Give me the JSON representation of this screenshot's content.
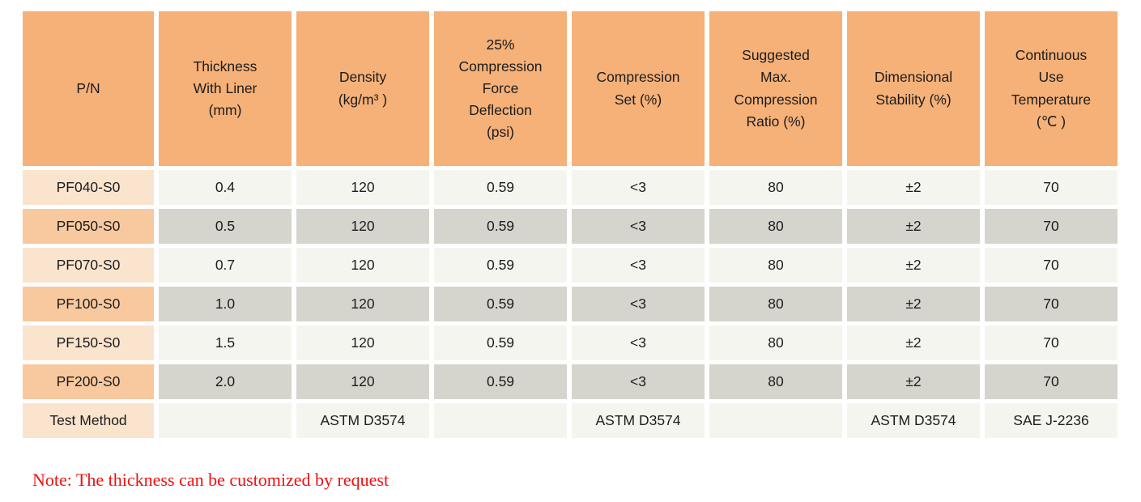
{
  "table": {
    "headers": [
      "P/N",
      "Thickness\nWith Liner\n(mm)",
      "Density\n(kg/m³ )",
      "25%\nCompression\nForce\nDeflection\n(psi)",
      "Compression\nSet (%)",
      "Suggested\nMax.\nCompression\nRatio (%)",
      "Dimensional\nStability (%)",
      "Continuous\nUse\nTemperature\n(℃ )"
    ],
    "rows": [
      {
        "pn": "PF040-S0",
        "variant": "light",
        "values": [
          "0.4",
          "120",
          "0.59",
          "<3",
          "80",
          "±2",
          "70"
        ]
      },
      {
        "pn": "PF050-S0",
        "variant": "dark",
        "values": [
          "0.5",
          "120",
          "0.59",
          "<3",
          "80",
          "±2",
          "70"
        ]
      },
      {
        "pn": "PF070-S0",
        "variant": "light",
        "values": [
          "0.7",
          "120",
          "0.59",
          "<3",
          "80",
          "±2",
          "70"
        ]
      },
      {
        "pn": "PF100-S0",
        "variant": "dark",
        "values": [
          "1.0",
          "120",
          "0.59",
          "<3",
          "80",
          "±2",
          "70"
        ]
      },
      {
        "pn": "PF150-S0",
        "variant": "light",
        "values": [
          "1.5",
          "120",
          "0.59",
          "<3",
          "80",
          "±2",
          "70"
        ]
      },
      {
        "pn": "PF200-S0",
        "variant": "dark",
        "values": [
          "2.0",
          "120",
          "0.59",
          "<3",
          "80",
          "±2",
          "70"
        ]
      },
      {
        "pn": "Test Method",
        "variant": "light",
        "values": [
          "",
          "ASTM D3574",
          "",
          "ASTM D3574",
          "",
          "ASTM D3574",
          "SAE J-2236"
        ]
      }
    ],
    "colors": {
      "header_bg": "#f5b178",
      "pn_light_bg": "#fbe4ce",
      "pn_dark_bg": "#f8c99e",
      "cell_light_bg": "#f5f5f0",
      "cell_dark_bg": "#d5d5cd",
      "text": "#1c1c1c"
    }
  },
  "note": {
    "text": "Note: The thickness can be customized by request",
    "color": "#ee1111"
  }
}
